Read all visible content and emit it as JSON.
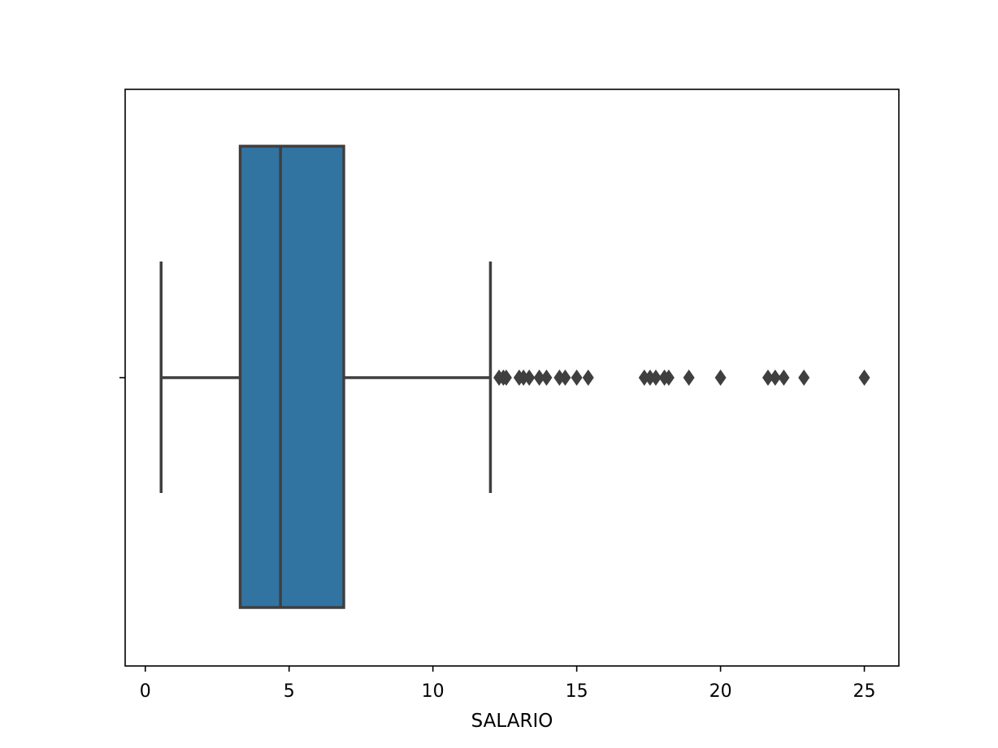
{
  "chart_data": {
    "type": "boxplot",
    "orientation": "horizontal",
    "xlabel": "SALARIO",
    "ylabel": "",
    "xlim": [
      -0.7,
      26.2
    ],
    "xticks": [
      0,
      5,
      10,
      15,
      20,
      25
    ],
    "xtick_labels": [
      "0",
      "5",
      "10",
      "15",
      "20",
      "25"
    ],
    "grid": false,
    "box": {
      "whisker_low": 0.55,
      "q1": 3.3,
      "median": 4.7,
      "q3": 6.9,
      "whisker_high": 12.0
    },
    "outliers": [
      12.3,
      12.45,
      12.55,
      13.0,
      13.15,
      13.35,
      13.7,
      13.95,
      14.4,
      14.6,
      15.0,
      15.4,
      17.35,
      17.55,
      17.75,
      18.05,
      18.2,
      18.9,
      20.0,
      21.65,
      21.9,
      22.2,
      22.9,
      25.0
    ],
    "colors": {
      "box_fill": "#3274a1",
      "line": "#3f3f3f",
      "frame": "#000000"
    }
  }
}
